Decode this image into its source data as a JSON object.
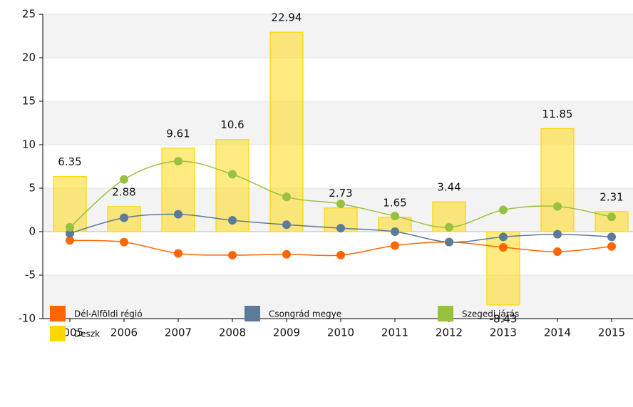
{
  "chart_data": {
    "type": "bar",
    "categories": [
      "2005",
      "2006",
      "2007",
      "2008",
      "2009",
      "2010",
      "2011",
      "2012",
      "2013",
      "2014",
      "2015"
    ],
    "ylim": [
      -10,
      25
    ],
    "yticks": [
      -10,
      -5,
      0,
      5,
      10,
      15,
      20,
      25
    ],
    "grid": true,
    "series": [
      {
        "name": "Dél-Alföldi régió",
        "type": "line",
        "color": "#ff6600",
        "values": [
          -1,
          -1.2,
          -2.5,
          -2.7,
          -2.6,
          -2.7,
          -1.6,
          -1.2,
          -1.8,
          -2.3,
          -1.7
        ]
      },
      {
        "name": "Csongrád megye",
        "type": "line",
        "color": "#5c7a99",
        "values": [
          -0.2,
          1.6,
          2.0,
          1.3,
          0.8,
          0.4,
          0.0,
          -1.2,
          -0.6,
          -0.3,
          -0.6
        ]
      },
      {
        "name": "Szegedi járás",
        "type": "line",
        "color": "#99c140",
        "values": [
          0.5,
          6.0,
          8.1,
          6.6,
          4.0,
          3.2,
          1.8,
          0.5,
          2.5,
          2.9,
          1.7
        ]
      },
      {
        "name": "Deszk",
        "type": "bar",
        "color": "#ffd700",
        "values": [
          6.35,
          2.88,
          9.61,
          10.6,
          22.94,
          2.73,
          1.65,
          3.44,
          -8.43,
          11.85,
          2.31
        ]
      }
    ]
  }
}
